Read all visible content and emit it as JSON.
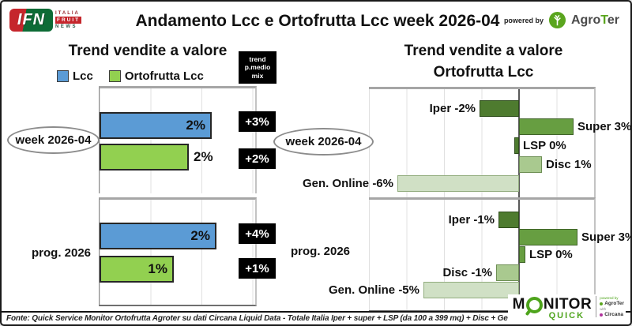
{
  "header": {
    "ifn": {
      "abbr": "IFN",
      "line1": "ITALIA",
      "line2": "FRUIT",
      "line3": "NEWS"
    },
    "title": "Andamento Lcc e Ortofrutta Lcc week 2026-04",
    "powered_by": "powered by",
    "agroter": {
      "agro": "Agro",
      "t": "T",
      "er": "er"
    }
  },
  "chart_data": [
    {
      "type": "bar",
      "orientation": "horizontal",
      "title": "Trend vendite a valore",
      "unit": "%",
      "grid": true,
      "gridline_step_pct": 1,
      "series": [
        {
          "name": "Lcc",
          "color": "#5B9BD5"
        },
        {
          "name": "Ortofrutta Lcc",
          "color": "#92D050"
        }
      ],
      "callout_column_header": "trend p.medio mix",
      "callout_header_lines": [
        "trend",
        "p.medio",
        "mix"
      ],
      "groups": [
        {
          "category": "week 2026-04",
          "bars": [
            {
              "series": "Lcc",
              "value": 2,
              "label": "2%",
              "est": 2.2,
              "callout": "+3%",
              "label_pos": "in"
            },
            {
              "series": "Ortofrutta Lcc",
              "value": 2,
              "label": "2%",
              "est": 1.75,
              "callout": "+2%",
              "label_pos": "out"
            }
          ]
        },
        {
          "category": "prog. 2026",
          "bars": [
            {
              "series": "Lcc",
              "value": 2,
              "label": "2%",
              "est": 2.3,
              "callout": "+4%",
              "label_pos": "in"
            },
            {
              "series": "Ortofrutta Lcc",
              "value": 1,
              "label": "1%",
              "est": 1.45,
              "callout": "+1%",
              "label_pos": "in"
            }
          ]
        }
      ]
    },
    {
      "type": "bar",
      "orientation": "horizontal",
      "title": "Trend vendite a valore Ortofrutta Lcc",
      "title_lines": [
        "Trend vendite a valore",
        "Ortofrutta Lcc"
      ],
      "unit": "%",
      "grid": true,
      "gridline_step_pct": 2,
      "axis_range_pct": [
        -8,
        4
      ],
      "groups": [
        {
          "category": "week 2026-04",
          "bars": [
            {
              "name": "Iper",
              "value": -2,
              "label": "Iper -2%",
              "est": -2.1,
              "color": "#4E7B2F",
              "border": "#2E4D1C"
            },
            {
              "name": "Super",
              "value": 3,
              "label": "Super 3%",
              "est": 2.9,
              "color": "#679E41",
              "border": "#3F6428"
            },
            {
              "name": "LSP",
              "value": 0,
              "label": "LSP 0%",
              "est": -0.25,
              "color": "#4E7B2F",
              "border": "#2E4D1C"
            },
            {
              "name": "Disc",
              "value": 1,
              "label": "Disc 1%",
              "est": 1.2,
              "color": "#A9C98F",
              "border": "#6E8F55"
            },
            {
              "name": "Gen. Online",
              "value": -6,
              "label": "Gen. Online -6%",
              "est": -6.5,
              "color": "#D0E0C5",
              "border": "#93AD7F"
            }
          ]
        },
        {
          "category": "prog. 2026",
          "bars": [
            {
              "name": "Iper",
              "value": -1,
              "label": "Iper -1%",
              "est": -1.1,
              "color": "#4E7B2F",
              "border": "#2E4D1C"
            },
            {
              "name": "Super",
              "value": 3,
              "label": "Super 3%",
              "est": 3.1,
              "color": "#679E41",
              "border": "#3F6428"
            },
            {
              "name": "LSP",
              "value": 0,
              "label": "LSP 0%",
              "est": 0.33,
              "color": "#679E41",
              "border": "#3F6428"
            },
            {
              "name": "Disc",
              "value": -1,
              "label": "Disc -1%",
              "est": -1.2,
              "color": "#A9C98F",
              "border": "#6E8F55"
            },
            {
              "name": "Gen. Online",
              "value": -5,
              "label": "Gen. Online -5%",
              "est": -5.1,
              "color": "#D0E0C5",
              "border": "#93AD7F"
            }
          ]
        }
      ]
    }
  ],
  "footer": {
    "source": "Fonte: Quick Service Monitor Ortofrutta Agroter su dati Circana Liquid Data - Totale Italia Iper + super + LSP (da 100 a 399 mq) + Disc + Generalisti Online - Lcc",
    "monitor": {
      "m": "M",
      "onitor": "NITOR",
      "quick": "QUICK",
      "powered_by": "powered by",
      "agroter": "AgroTer",
      "with": "with",
      "circana": "Circana"
    }
  }
}
